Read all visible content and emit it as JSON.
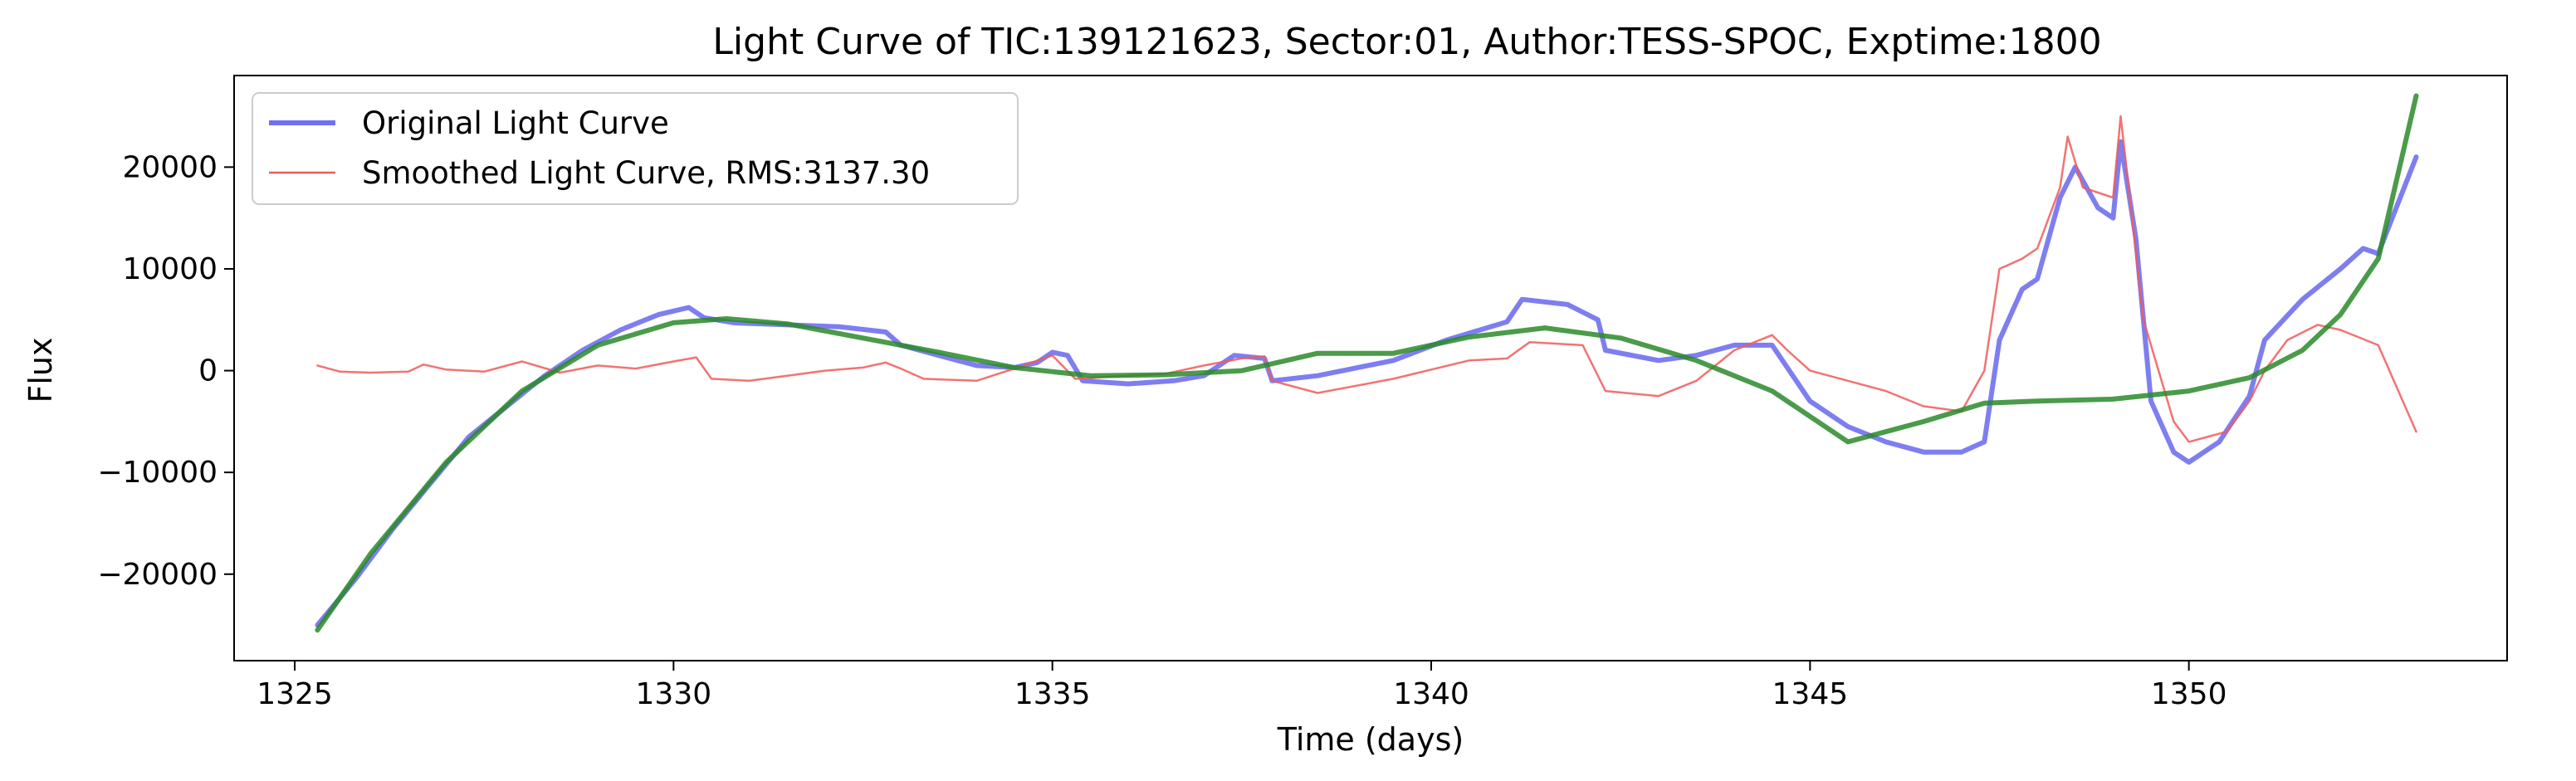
{
  "chart_data": {
    "type": "line",
    "title": "Light Curve of TIC:139121623, Sector:01, Author:TESS-SPOC, Exptime:1800",
    "xlabel": "Time (days)",
    "ylabel": "Flux",
    "xlim": [
      1324.2,
      1354.2
    ],
    "ylim": [
      -28500,
      29000
    ],
    "x_ticks": [
      1325,
      1330,
      1335,
      1340,
      1345,
      1350
    ],
    "y_ticks": [
      -20000,
      -10000,
      0,
      10000,
      20000
    ],
    "grid": false,
    "legend_position": "upper-left",
    "series": [
      {
        "name": "Original Light Curve",
        "color": "#7070f0",
        "points": [
          [
            1325.3,
            -25000
          ],
          [
            1325.8,
            -20500
          ],
          [
            1326.3,
            -15500
          ],
          [
            1326.8,
            -11000
          ],
          [
            1327.3,
            -6500
          ],
          [
            1327.8,
            -3500
          ],
          [
            1328.3,
            -500
          ],
          [
            1328.8,
            2000
          ],
          [
            1329.3,
            4000
          ],
          [
            1329.8,
            5500
          ],
          [
            1330.2,
            6200
          ],
          [
            1330.4,
            5200
          ],
          [
            1330.8,
            4700
          ],
          [
            1331.5,
            4500
          ],
          [
            1332.2,
            4300
          ],
          [
            1332.8,
            3800
          ],
          [
            1333.0,
            2500
          ],
          [
            1333.5,
            1500
          ],
          [
            1334.0,
            500
          ],
          [
            1334.5,
            300
          ],
          [
            1334.8,
            800
          ],
          [
            1335.0,
            1800
          ],
          [
            1335.2,
            1500
          ],
          [
            1335.4,
            -1000
          ],
          [
            1336.0,
            -1300
          ],
          [
            1336.6,
            -1000
          ],
          [
            1337.0,
            -500
          ],
          [
            1337.4,
            1500
          ],
          [
            1337.8,
            1200
          ],
          [
            1337.9,
            -1000
          ],
          [
            1338.5,
            -500
          ],
          [
            1339.5,
            1000
          ],
          [
            1340.2,
            3000
          ],
          [
            1341.0,
            4800
          ],
          [
            1341.2,
            7000
          ],
          [
            1341.8,
            6500
          ],
          [
            1342.2,
            5000
          ],
          [
            1342.3,
            2000
          ],
          [
            1343.0,
            1000
          ],
          [
            1343.5,
            1500
          ],
          [
            1344.0,
            2500
          ],
          [
            1344.5,
            2500
          ],
          [
            1345.0,
            -3000
          ],
          [
            1345.5,
            -5500
          ],
          [
            1346.0,
            -7000
          ],
          [
            1346.5,
            -8000
          ],
          [
            1347.0,
            -8000
          ],
          [
            1347.3,
            -7000
          ],
          [
            1347.5,
            3000
          ],
          [
            1347.8,
            8000
          ],
          [
            1348.0,
            9000
          ],
          [
            1348.3,
            17000
          ],
          [
            1348.5,
            20000
          ],
          [
            1348.8,
            16000
          ],
          [
            1349.0,
            15000
          ],
          [
            1349.1,
            22500
          ],
          [
            1349.3,
            13000
          ],
          [
            1349.5,
            -3000
          ],
          [
            1349.8,
            -8000
          ],
          [
            1350.0,
            -9000
          ],
          [
            1350.4,
            -7000
          ],
          [
            1350.8,
            -2500
          ],
          [
            1351.0,
            3000
          ],
          [
            1351.5,
            7000
          ],
          [
            1352.0,
            10000
          ],
          [
            1352.3,
            12000
          ],
          [
            1352.5,
            11500
          ],
          [
            1353.0,
            21000
          ]
        ]
      },
      {
        "name": "Smoothed Light Curve, RMS:3137.30",
        "color": "#f05a5a",
        "points": [
          [
            1325.3,
            500
          ],
          [
            1325.6,
            -100
          ],
          [
            1326.0,
            -200
          ],
          [
            1326.5,
            -100
          ],
          [
            1326.7,
            600
          ],
          [
            1327.0,
            100
          ],
          [
            1327.5,
            -100
          ],
          [
            1328.0,
            900
          ],
          [
            1328.5,
            -200
          ],
          [
            1329.0,
            500
          ],
          [
            1329.5,
            200
          ],
          [
            1330.0,
            900
          ],
          [
            1330.3,
            1300
          ],
          [
            1330.5,
            -800
          ],
          [
            1331.0,
            -1000
          ],
          [
            1331.5,
            -500
          ],
          [
            1332.0,
            0
          ],
          [
            1332.5,
            300
          ],
          [
            1332.8,
            800
          ],
          [
            1333.0,
            200
          ],
          [
            1333.3,
            -800
          ],
          [
            1334.0,
            -1000
          ],
          [
            1334.5,
            200
          ],
          [
            1335.0,
            1500
          ],
          [
            1335.3,
            -800
          ],
          [
            1336.0,
            -500
          ],
          [
            1336.5,
            -300
          ],
          [
            1337.0,
            500
          ],
          [
            1337.5,
            1200
          ],
          [
            1337.8,
            1400
          ],
          [
            1337.9,
            -1000
          ],
          [
            1338.5,
            -2200
          ],
          [
            1339.5,
            -800
          ],
          [
            1340.5,
            1000
          ],
          [
            1341.0,
            1200
          ],
          [
            1341.3,
            2800
          ],
          [
            1342.0,
            2500
          ],
          [
            1342.3,
            -2000
          ],
          [
            1343.0,
            -2500
          ],
          [
            1343.5,
            -1000
          ],
          [
            1344.0,
            2000
          ],
          [
            1344.5,
            3500
          ],
          [
            1344.7,
            2000
          ],
          [
            1345.0,
            0
          ],
          [
            1346.0,
            -2000
          ],
          [
            1346.5,
            -3500
          ],
          [
            1347.0,
            -4000
          ],
          [
            1347.3,
            0
          ],
          [
            1347.5,
            10000
          ],
          [
            1347.8,
            11000
          ],
          [
            1348.0,
            12000
          ],
          [
            1348.3,
            18000
          ],
          [
            1348.4,
            23000
          ],
          [
            1348.6,
            18000
          ],
          [
            1349.0,
            17000
          ],
          [
            1349.1,
            25000
          ],
          [
            1349.4,
            5000
          ],
          [
            1349.8,
            -5000
          ],
          [
            1350.0,
            -7000
          ],
          [
            1350.5,
            -6000
          ],
          [
            1350.8,
            -3000
          ],
          [
            1351.0,
            0
          ],
          [
            1351.3,
            3000
          ],
          [
            1351.7,
            4500
          ],
          [
            1352.0,
            4000
          ],
          [
            1352.5,
            2500
          ],
          [
            1353.0,
            -6000
          ]
        ]
      },
      {
        "name": "",
        "color": "#2a8a2a",
        "points": [
          [
            1325.3,
            -25500
          ],
          [
            1326.0,
            -18000
          ],
          [
            1327.0,
            -9000
          ],
          [
            1328.0,
            -2000
          ],
          [
            1329.0,
            2500
          ],
          [
            1330.0,
            4700
          ],
          [
            1330.7,
            5100
          ],
          [
            1331.5,
            4600
          ],
          [
            1332.5,
            3200
          ],
          [
            1333.5,
            1800
          ],
          [
            1334.5,
            300
          ],
          [
            1335.5,
            -500
          ],
          [
            1336.5,
            -400
          ],
          [
            1337.5,
            0
          ],
          [
            1338.5,
            1700
          ],
          [
            1339.5,
            1700
          ],
          [
            1340.5,
            3300
          ],
          [
            1341.5,
            4200
          ],
          [
            1342.5,
            3200
          ],
          [
            1343.5,
            1000
          ],
          [
            1344.5,
            -2000
          ],
          [
            1345.0,
            -4500
          ],
          [
            1345.5,
            -7000
          ],
          [
            1346.5,
            -5000
          ],
          [
            1347.3,
            -3200
          ],
          [
            1348.0,
            -3000
          ],
          [
            1349.0,
            -2800
          ],
          [
            1350.0,
            -2000
          ],
          [
            1350.8,
            -700
          ],
          [
            1351.5,
            2000
          ],
          [
            1352.0,
            5500
          ],
          [
            1352.5,
            11000
          ],
          [
            1353.0,
            27000
          ]
        ]
      }
    ]
  }
}
